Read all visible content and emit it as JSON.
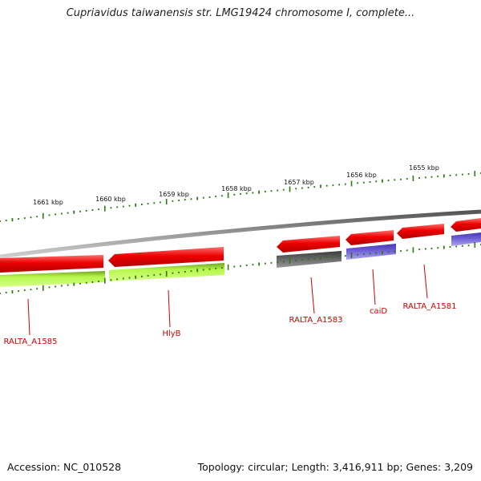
{
  "title": "Cupriavidus taiwanensis str. LMG19424 chromosome I, complete...",
  "footer": {
    "accession": "Accession: NC_010528",
    "stats": "Topology: circular; Length: 3,416,911 bp; Genes: 3,209"
  },
  "ruler": {
    "ticks": [
      {
        "label": "1661 kbp"
      },
      {
        "label": "1660 kbp"
      },
      {
        "label": "1659 kbp"
      },
      {
        "label": "1658 kbp"
      },
      {
        "label": "1657 kbp"
      },
      {
        "label": "1656 kbp"
      },
      {
        "label": "1655 kbp"
      }
    ]
  },
  "gene_labels": [
    "RALTA_A1585",
    "HlyB",
    "RALTA_A1583",
    "caiD",
    "RALTA_A1581"
  ],
  "colors": {
    "backbone": "#8a8a8a",
    "gene_red": "#ee0000",
    "cds_green": "#aef03a",
    "cds_gray": "#666666",
    "cds_purple": "#7060d8",
    "tick_green": "#2a7a10",
    "label_red": "#cc0000"
  }
}
